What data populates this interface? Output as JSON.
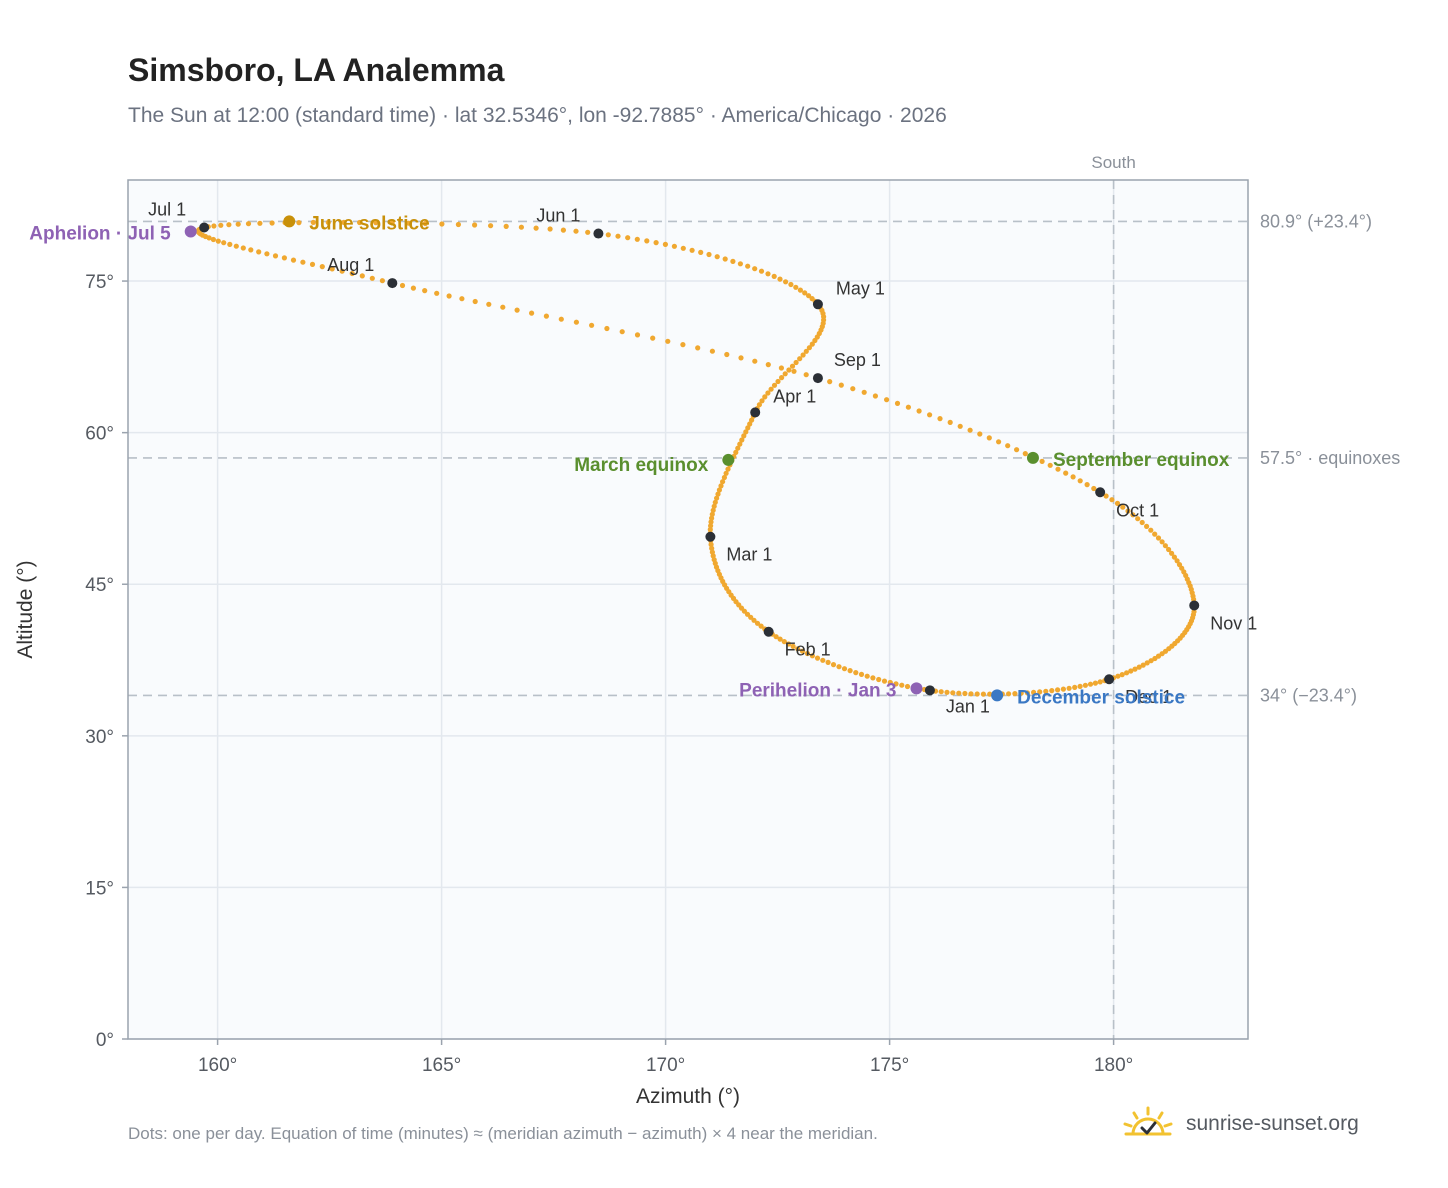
{
  "header": {
    "title": "Simsboro, LA Analemma",
    "subtitle": "The Sun at 12:00 (standard time) · lat 32.5346°, lon -92.7885° · America/Chicago · 2026"
  },
  "footer": {
    "note": "Dots: one per day. Equation of time (minutes) ≈ (meridian azimuth − azimuth) × 4 near the meridian.",
    "brand": "sunrise-sunset.org"
  },
  "colors": {
    "curve": "#f0a830",
    "month_marker": "#2b2f36",
    "solstice_june": "#c8900a",
    "solstice_december": "#3a78c4",
    "equinox": "#5a8f2e",
    "apsis": "#8e62b4",
    "ref_line": "#b8c0c8",
    "plot_bg": "#f9fbfd",
    "grid": "#e3e8ee",
    "axis_text": "#555a61"
  },
  "chart_data": {
    "type": "scatter",
    "xlabel": "Azimuth (°)",
    "ylabel": "Altitude (°)",
    "xlim": [
      158,
      183
    ],
    "ylim": [
      0,
      85
    ],
    "xticks": [
      160,
      165,
      170,
      175,
      180
    ],
    "yticks": [
      0,
      15,
      30,
      45,
      60,
      75
    ],
    "x_tick_format": "{v}°",
    "y_tick_format": "{v}°",
    "grid": true,
    "south_line": {
      "label": "South",
      "x": 180
    },
    "reference_lines": [
      {
        "y": 80.9,
        "label": "80.9° (+23.4°)"
      },
      {
        "y": 57.5,
        "label": "57.5° · equinoxes"
      },
      {
        "y": 34.0,
        "label": "34° (−23.4°)"
      }
    ],
    "month_markers": [
      {
        "label": "Jan 1",
        "az": 175.9,
        "alt": 34.5
      },
      {
        "label": "Feb 1",
        "az": 172.3,
        "alt": 40.3
      },
      {
        "label": "Mar 1",
        "az": 171.0,
        "alt": 49.7
      },
      {
        "label": "Apr 1",
        "az": 172.0,
        "alt": 62.0
      },
      {
        "label": "May 1",
        "az": 173.4,
        "alt": 72.7
      },
      {
        "label": "Jun 1",
        "az": 168.5,
        "alt": 79.7
      },
      {
        "label": "Jul 1",
        "az": 159.7,
        "alt": 80.3
      },
      {
        "label": "Aug 1",
        "az": 163.9,
        "alt": 74.8
      },
      {
        "label": "Sep 1",
        "az": 173.4,
        "alt": 65.4
      },
      {
        "label": "Oct 1",
        "az": 179.7,
        "alt": 54.1
      },
      {
        "label": "Nov 1",
        "az": 181.8,
        "alt": 42.9
      },
      {
        "label": "Dec 1",
        "az": 179.9,
        "alt": 35.6
      }
    ],
    "events": [
      {
        "label": "June solstice",
        "kind": "solstice_june",
        "az": 161.6,
        "alt": 80.9
      },
      {
        "label": "December solstice",
        "kind": "solstice_december",
        "az": 177.4,
        "alt": 34.0
      },
      {
        "label": "March equinox",
        "kind": "equinox",
        "az": 171.4,
        "alt": 57.3
      },
      {
        "label": "September equinox",
        "kind": "equinox",
        "az": 178.2,
        "alt": 57.5
      },
      {
        "label": "Aphelion · Jul 5",
        "kind": "apsis",
        "az": 159.4,
        "alt": 79.9
      },
      {
        "label": "Perihelion · Jan 3",
        "kind": "apsis",
        "az": 175.6,
        "alt": 34.7
      }
    ]
  }
}
